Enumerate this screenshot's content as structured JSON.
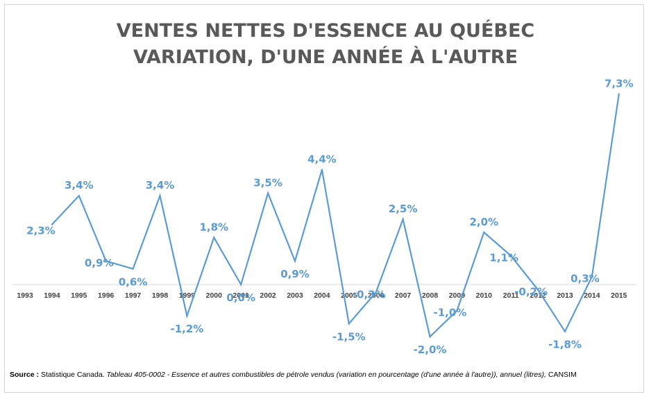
{
  "title_line1": "VENTES NETTES D'ESSENCE AU QUÉBEC",
  "title_line2": "VARIATION, D'UNE ANNÉE À L'AUTRE",
  "source": {
    "label": "Source :",
    "org": "Statistique Canada.",
    "table": "Tableau  405-0002 -  Essence et autres combustibles de pétrole vendus (variation en pourcentage (d'une année à l'autre)), annuel (litres),",
    "db": "CANSIM"
  },
  "colors": {
    "line": "#5b9bd5",
    "labels": "#5b9bd5",
    "axis": "#d9d9d9",
    "ticks": "#404040",
    "title": "#595959"
  },
  "chart_data": {
    "type": "line",
    "title": "VENTES NETTES D'ESSENCE AU QUÉBEC VARIATION, D'UNE ANNÉE À L'AUTRE",
    "categories": [
      "1993",
      "1994",
      "1995",
      "1996",
      "1997",
      "1998",
      "1999",
      "2000",
      "2001",
      "2002",
      "2003",
      "2004",
      "2005",
      "2006",
      "2007",
      "2008",
      "2009",
      "2010",
      "2011",
      "2012",
      "2013",
      "2014",
      "2015"
    ],
    "x": [
      "1994",
      "1995",
      "1996",
      "1997",
      "1998",
      "1999",
      "2000",
      "2001",
      "2002",
      "2003",
      "2004",
      "2005",
      "2006",
      "2007",
      "2008",
      "2009",
      "2010",
      "2011",
      "2012",
      "2013",
      "2014",
      "2015"
    ],
    "values": [
      2.3,
      3.4,
      0.9,
      0.6,
      3.4,
      -1.2,
      1.8,
      0.0,
      3.5,
      0.9,
      4.4,
      -1.5,
      -0.3,
      2.5,
      -2.0,
      -1.0,
      2.0,
      1.1,
      -0.2,
      -1.8,
      0.3,
      7.3
    ],
    "data_labels": [
      "2,3%",
      "3,4%",
      "0,9%",
      "0,6%",
      "3,4%",
      "-1,2%",
      "1,8%",
      "0,0%",
      "3,5%",
      "0,9%",
      "4,4%",
      "-1,5%",
      "-0,3%",
      "2,5%",
      "-2,0%",
      "-1,0%",
      "2,0%",
      "1,1%",
      "-0,2%",
      "-1,8%",
      "0,3%",
      "7,3%"
    ],
    "xlabel": "",
    "ylabel": "",
    "ylim": [
      -2.5,
      8
    ],
    "grid": false,
    "legend": "none"
  }
}
